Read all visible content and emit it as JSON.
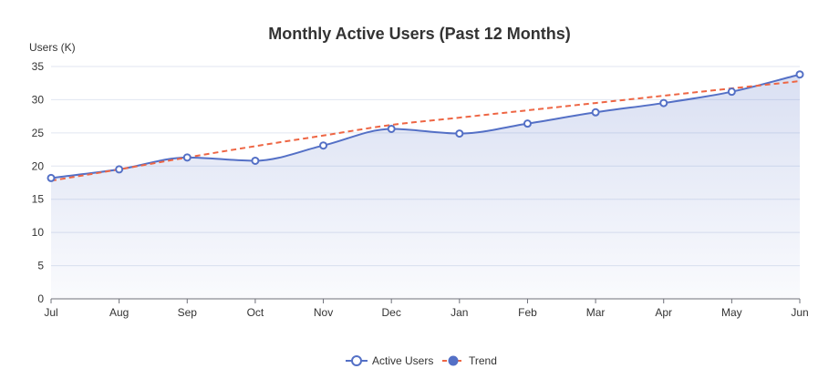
{
  "chart_data": {
    "type": "line",
    "title": "Monthly Active Users (Past 12 Months)",
    "ylabel": "Users (K)",
    "xlabel": "",
    "categories": [
      "Jul",
      "Aug",
      "Sep",
      "Oct",
      "Nov",
      "Dec",
      "Jan",
      "Feb",
      "Mar",
      "Apr",
      "May",
      "Jun"
    ],
    "ylim": [
      0,
      35
    ],
    "yticks": [
      0,
      5,
      10,
      15,
      20,
      25,
      30,
      35
    ],
    "grid": true,
    "legend_position": "bottom-center",
    "series": [
      {
        "name": "Active Users",
        "style": "smooth-line-area",
        "color": "#5470c6",
        "values": [
          18.2,
          19.5,
          21.3,
          20.8,
          23.1,
          25.6,
          24.9,
          26.4,
          28.1,
          29.5,
          31.2,
          33.8
        ]
      },
      {
        "name": "Trend",
        "style": "dashed",
        "color": "#ee6644",
        "values": [
          17.8,
          19.5,
          21.3,
          23.0,
          24.6,
          26.2,
          27.3,
          28.4,
          29.5,
          30.6,
          31.7,
          32.8
        ]
      }
    ]
  }
}
